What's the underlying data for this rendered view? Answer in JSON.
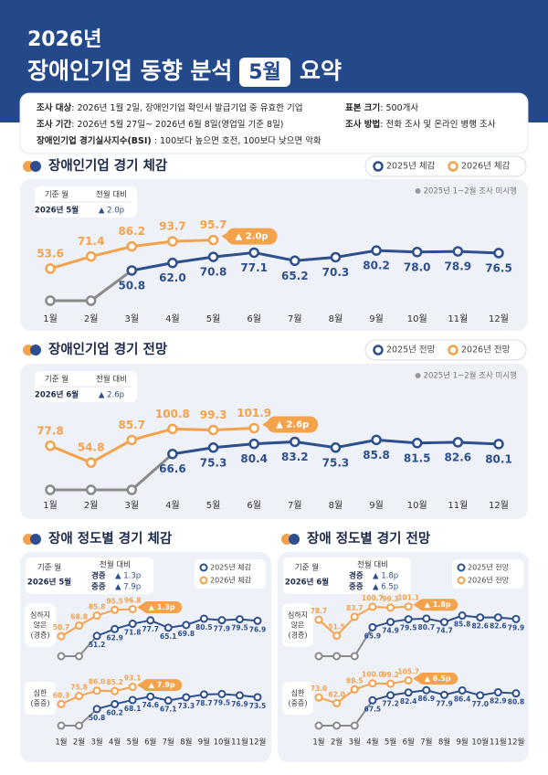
{
  "header": {
    "year": "2026년",
    "title": "장애인기업 동향 분석",
    "month": "5월",
    "suffix": "요약"
  },
  "survey": [
    {
      "label": "조사 대상",
      "text": ": 2026년 1월 2일, 장애인기업 확인서 발급기업 중 유효한 기업"
    },
    {
      "label": "조사 기간",
      "text": ": 2026년 5월 27일~ 2026년 6월 8일(영업일 기준 8일)"
    },
    {
      "label": "장애인기업 경기실사지수(BSI)",
      "text": " : 100보다 높으면 호전, 100보다 낮으면 악화"
    },
    {
      "label": "표본 크기",
      "text": ": 500개사"
    },
    {
      "label": "조사 방법",
      "text": ": 전화 조사 및 온라인 병행 조사"
    }
  ],
  "chart_data": [
    {
      "type": "line",
      "title": "장애인기업 경기 체감",
      "categories": [
        "1월",
        "2월",
        "3월",
        "4월",
        "5월",
        "6월",
        "7월",
        "8월",
        "9월",
        "10월",
        "11월",
        "12월"
      ],
      "ylim": [
        40,
        110
      ],
      "base_label": "기준 월",
      "base_month": "2026년 5월",
      "change_title": "전월 대비",
      "changes": [
        {
          "value": "▲ 2.0p"
        }
      ],
      "note": "2025년 1~2월 조사 미시행",
      "callout": "▲ 2.0p",
      "series": [
        {
          "name": "2025년 체감",
          "color": "#2d4f8e",
          "values": [
            null,
            null,
            50.8,
            62.0,
            70.8,
            77.1,
            65.2,
            70.3,
            80.2,
            78.0,
            78.9,
            76.5
          ],
          "value_labels": [
            null,
            null,
            "50.8",
            "62.0",
            "70.8",
            "77.1",
            "65.2",
            "70.3",
            "80.2",
            "78.0",
            "78.9",
            "76.5"
          ]
        },
        {
          "name": "2026년 체감",
          "color": "#f4a24c",
          "values": [
            53.6,
            71.4,
            86.2,
            93.7,
            95.7,
            null,
            null,
            null,
            null,
            null,
            null,
            null
          ],
          "value_labels": [
            "53.6",
            "71.4",
            "86.2",
            "93.7",
            "95.7",
            null,
            null,
            null,
            null,
            null,
            null,
            null
          ]
        }
      ]
    },
    {
      "type": "line",
      "title": "장애인기업 경기 전망",
      "categories": [
        "1월",
        "2월",
        "3월",
        "4월",
        "5월",
        "6월",
        "7월",
        "8월",
        "9월",
        "10월",
        "11월",
        "12월"
      ],
      "ylim": [
        40,
        110
      ],
      "base_label": "기준 월",
      "base_month": "2026년 6월",
      "change_title": "전월 대비",
      "changes": [
        {
          "value": "▲ 2.6p"
        }
      ],
      "note": "2025년 1~2월 조사 미시행",
      "callout": "▲ 2.6p",
      "series": [
        {
          "name": "2025년 전망",
          "color": "#2d4f8e",
          "values": [
            null,
            null,
            null,
            66.6,
            75.3,
            80.4,
            83.2,
            75.3,
            85.8,
            81.5,
            82.6,
            80.1
          ],
          "value_labels": [
            null,
            null,
            null,
            "66.6",
            "75.3",
            "80.4",
            "83.2",
            "75.3",
            "85.8",
            "81.5",
            "82.6",
            "80.1"
          ]
        },
        {
          "name": "2026년 전망",
          "color": "#f4a24c",
          "values": [
            77.8,
            54.8,
            85.7,
            100.8,
            99.3,
            101.9,
            null,
            null,
            null,
            null,
            null,
            null
          ],
          "value_labels": [
            "77.8",
            "54.8",
            "85.7",
            "100.8",
            "99.3",
            "101.9",
            null,
            null,
            null,
            null,
            null,
            null
          ]
        }
      ]
    },
    {
      "type": "line",
      "title": "장애 정도별 경기 체감",
      "categories": [
        "1월",
        "2월",
        "3월",
        "4월",
        "5월",
        "6월",
        "7월",
        "8월",
        "9월",
        "10월",
        "11월",
        "12월"
      ],
      "ylim": [
        40,
        110
      ],
      "base_label": "기준 월",
      "base_month": "2026년 5월",
      "change_title": "전월 대비",
      "changes": [
        {
          "name": "경증",
          "value": "▲ 1.3p"
        },
        {
          "name": "중증",
          "value": "▲ 7.9p"
        }
      ],
      "legend": [
        {
          "name": "2025년 체감",
          "color": "#2d4f8e"
        },
        {
          "name": "2026년 체감",
          "color": "#f4a24c"
        }
      ],
      "panels": [
        {
          "label": [
            "심하지",
            "않은",
            "(경증)"
          ],
          "callout": "▲ 1.3p",
          "series": [
            {
              "values": [
                null,
                null,
                51.2,
                62.9,
                71.8,
                77.7,
                65.1,
                69.8,
                80.5,
                77.9,
                79.5,
                76.9
              ],
              "value_labels": [
                null,
                null,
                "51.2",
                "62.9",
                "71.8",
                "77.7",
                "65.1",
                "69.8",
                "80.5",
                "77.9",
                "79.5",
                "76.9"
              ]
            },
            {
              "values": [
                50.7,
                68.8,
                85.8,
                95.5,
                96.8,
                null,
                null,
                null,
                null,
                null,
                null,
                null
              ],
              "value_labels": [
                "50.7",
                "68.8",
                "85.8",
                "95.5",
                "96.8",
                null,
                null,
                null,
                null,
                null,
                null,
                null
              ]
            }
          ]
        },
        {
          "label": [
            "심한",
            "(중증)"
          ],
          "callout": "▲ 7.9p",
          "series": [
            {
              "values": [
                null,
                null,
                50.8,
                60.2,
                68.1,
                74.6,
                67.1,
                73.3,
                78.7,
                79.5,
                76.9,
                73.5
              ],
              "value_labels": [
                null,
                null,
                "50.8",
                "60.2",
                "68.1",
                "74.6",
                "67.1",
                "73.3",
                "78.7",
                "79.5",
                "76.9",
                "73.5"
              ]
            },
            {
              "values": [
                60.3,
                75.8,
                86.0,
                85.2,
                93.1,
                null,
                null,
                null,
                null,
                null,
                null,
                null
              ],
              "value_labels": [
                "60.3",
                "75.8",
                "86.0",
                "85.2",
                "93.1",
                null,
                null,
                null,
                null,
                null,
                null,
                null
              ]
            }
          ]
        }
      ]
    },
    {
      "type": "line",
      "title": "장애 정도별 경기 전망",
      "categories": [
        "1월",
        "2월",
        "3월",
        "4월",
        "5월",
        "6월",
        "7월",
        "8월",
        "9월",
        "10월",
        "11월",
        "12월"
      ],
      "ylim": [
        40,
        110
      ],
      "base_label": "기준 월",
      "base_month": "2026년 6월",
      "change_title": "전월 대비",
      "changes": [
        {
          "name": "경증",
          "value": "▲ 1.8p"
        },
        {
          "name": "중증",
          "value": "▲ 6.5p"
        }
      ],
      "legend": [
        {
          "name": "2025년 전망",
          "color": "#2d4f8e"
        },
        {
          "name": "2026년 전망",
          "color": "#f4a24c"
        }
      ],
      "panels": [
        {
          "label": [
            "심하지",
            "않은",
            "(경증)"
          ],
          "callout": "▲ 1.8p",
          "series": [
            {
              "values": [
                null,
                null,
                null,
                65.9,
                74.9,
                79.5,
                80.7,
                74.7,
                85.8,
                82.6,
                82.6,
                79.9
              ],
              "value_labels": [
                null,
                null,
                null,
                "65.9",
                "74.9",
                "79.5",
                "80.7",
                "74.7",
                "85.8",
                "82.6",
                "82.6",
                "79.9"
              ]
            },
            {
              "values": [
                78.7,
                51.5,
                83.7,
                100.7,
                99.3,
                101.1,
                null,
                null,
                null,
                null,
                null,
                null
              ],
              "value_labels": [
                "78.7",
                "51.5",
                "83.7",
                "100.7",
                "99.3",
                "101.1",
                null,
                null,
                null,
                null,
                null,
                null
              ]
            }
          ]
        },
        {
          "label": [
            "심한",
            "(중증)"
          ],
          "callout": "▲ 6.5p",
          "series": [
            {
              "values": [
                null,
                null,
                null,
                67.5,
                77.2,
                82.4,
                86.9,
                77.9,
                86.4,
                77.0,
                82.9,
                80.8
              ],
              "value_labels": [
                null,
                null,
                null,
                "67.5",
                "77.2",
                "82.4",
                "86.9",
                "77.9",
                "86.4",
                "77.0",
                "82.9",
                "80.8"
              ]
            },
            {
              "values": [
                73.0,
                62.0,
                88.5,
                100.0,
                99.2,
                105.7,
                null,
                null,
                null,
                null,
                null,
                null
              ],
              "value_labels": [
                "73.0",
                "62.0",
                "88.5",
                "100.0",
                "99.2",
                "105.7",
                null,
                null,
                null,
                null,
                null,
                null
              ]
            }
          ]
        }
      ]
    }
  ]
}
